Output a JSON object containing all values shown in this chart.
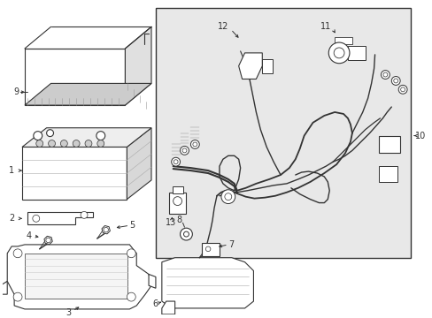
{
  "bg_color": "#ffffff",
  "fig_width": 4.89,
  "fig_height": 3.6,
  "dpi": 100,
  "line_color": "#333333",
  "wiring_bg": "#e8e8e8",
  "label_fontsize": 7.0
}
